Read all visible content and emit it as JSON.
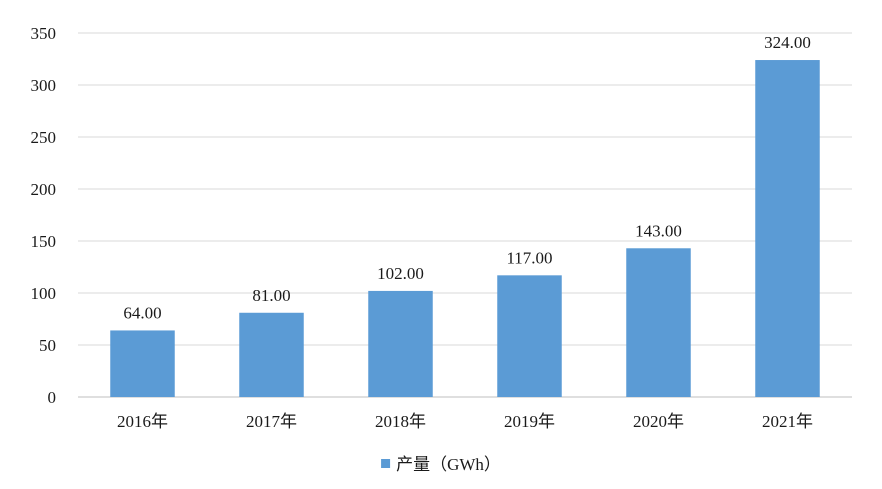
{
  "chart_data": {
    "type": "bar",
    "categories": [
      "2016年",
      "2017年",
      "2018年",
      "2019年",
      "2020年",
      "2021年"
    ],
    "series": [
      {
        "name": "产量（GWh）",
        "values": [
          64.0,
          81.0,
          102.0,
          117.0,
          143.0,
          324.0
        ],
        "data_labels": [
          "64.00",
          "81.00",
          "102.00",
          "117.00",
          "143.00",
          "324.00"
        ],
        "color": "#5b9bd5"
      }
    ],
    "title": "",
    "xlabel": "",
    "ylabel": "",
    "ylim": [
      0,
      350
    ],
    "yticks": [
      0,
      50,
      100,
      150,
      200,
      250,
      300,
      350
    ],
    "grid": true,
    "legend_position": "bottom"
  }
}
